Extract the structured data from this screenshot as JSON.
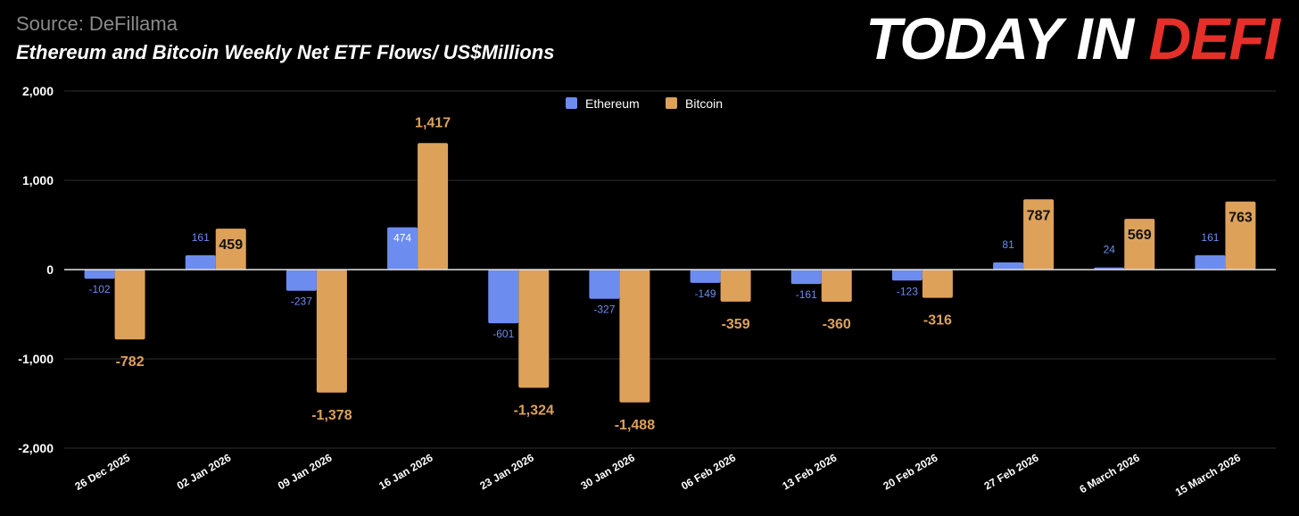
{
  "header": {
    "source": "Source: DeFillama",
    "title": "Ethereum and Bitcoin Weekly Net ETF Flows/ US$Millions"
  },
  "brand": {
    "word1": "TODAY IN ",
    "word2": "DEFI"
  },
  "colors": {
    "ethereum": "#6d8cf0",
    "bitcoin": "#dda15a",
    "brand_red": "#e5302a"
  },
  "chart_data": {
    "type": "bar",
    "title": "Ethereum and Bitcoin Weekly Net ETF Flows/ US$Millions",
    "ylabel": "US$Millions",
    "ylim": [
      -2000,
      2000
    ],
    "yticks": [
      2000,
      1000,
      0,
      -1000,
      -2000
    ],
    "ytick_labels": [
      "2,000",
      "1,000",
      "0",
      "-1,000",
      "-2,000"
    ],
    "categories": [
      "26 Dec 2025",
      "02 Jan 2026",
      "09 Jan 2026",
      "16 Jan 2026",
      "23 Jan 2026",
      "30 Jan 2026",
      "06 Feb 2026",
      "13 Feb 2026",
      "20 Feb 2026",
      "27 Feb 2026",
      "6 March 2026",
      "15 March 2026"
    ],
    "legend_position": "top-center",
    "series": [
      {
        "name": "Ethereum",
        "values": [
          -102,
          161,
          -237,
          474,
          -601,
          -327,
          -149,
          -161,
          -123,
          81,
          24,
          161
        ],
        "labels": [
          "-102",
          "161",
          "-237",
          "474",
          "-601",
          "-327",
          "-149",
          "-161",
          "-123",
          "81",
          "24",
          "161"
        ]
      },
      {
        "name": "Bitcoin",
        "values": [
          -782,
          459,
          -1378,
          1417,
          -1324,
          -1488,
          -359,
          -360,
          -316,
          787,
          569,
          763
        ],
        "labels": [
          "-782",
          "459",
          "-1,378",
          "1,417",
          "-1,324",
          "-1,488",
          "-359",
          "-360",
          "-316",
          "787",
          "569",
          "763"
        ]
      }
    ]
  }
}
